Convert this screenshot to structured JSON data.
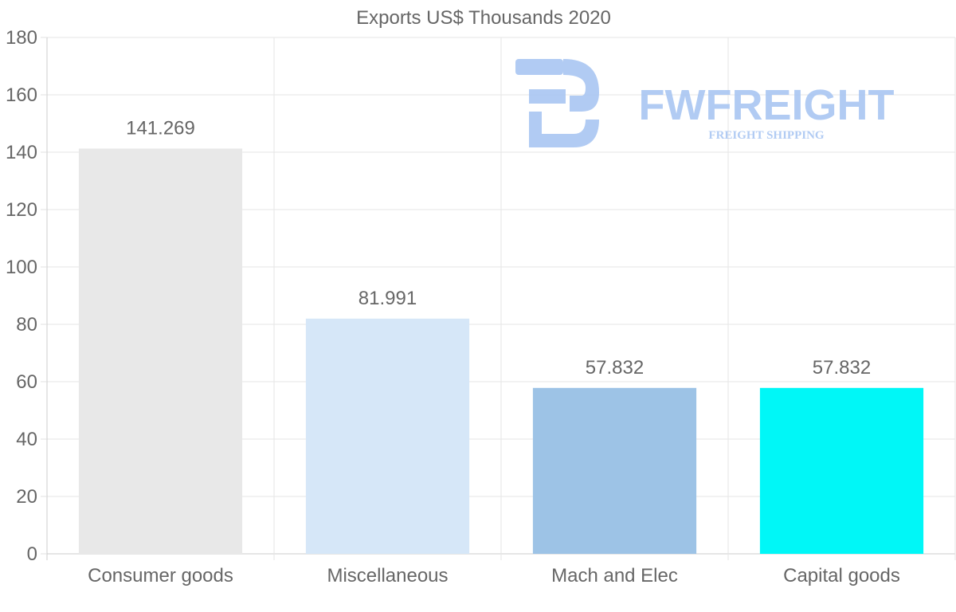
{
  "chart_data": {
    "type": "bar",
    "title": "Exports US$ Thousands 2020",
    "xlabel": "",
    "ylabel": "",
    "categories": [
      "Consumer goods",
      "Miscellaneous",
      "Mach and Elec",
      "Capital goods"
    ],
    "values": [
      141.269,
      81.991,
      57.832,
      57.832
    ],
    "data_labels": [
      "141.269",
      "81.991",
      "57.832",
      "57.832"
    ],
    "colors": [
      "#e8e8e8",
      "#d6e7f8",
      "#9dc3e6",
      "#00f7f7"
    ],
    "ylim": [
      0,
      180
    ],
    "yticks": [
      0,
      20,
      40,
      60,
      80,
      100,
      120,
      140,
      160,
      180
    ],
    "grid": true,
    "legend": "none"
  },
  "watermark": {
    "brand": "FWFREIGHT",
    "tagline": "FREIGHT SHIPPING",
    "color": "#a9c6f2"
  }
}
